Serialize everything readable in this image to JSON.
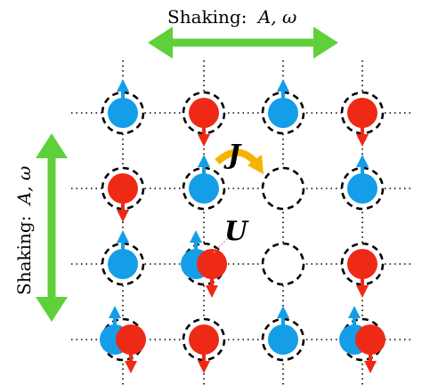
{
  "top_label": {
    "prefix": "Shaking:",
    "symbols": "A, ω"
  },
  "left_label": {
    "prefix": "Shaking:",
    "symbols": "A, ω"
  },
  "tunneling_label": "J",
  "interaction_label": "U",
  "colors": {
    "spin_up": "#149ee8",
    "spin_down": "#ee2a17",
    "shake_arrow": "#5fd03a",
    "tunnel_arrow": "#f5b400",
    "lattice": "#000000"
  },
  "lattice": {
    "rows": 4,
    "cols": 4,
    "sites": [
      [
        [
          "up"
        ],
        [
          "down"
        ],
        [
          "up"
        ],
        [
          "down"
        ]
      ],
      [
        [
          "down"
        ],
        [
          "up"
        ],
        [],
        [
          "up"
        ]
      ],
      [
        [
          "up"
        ],
        [
          "up",
          "down"
        ],
        [],
        [
          "down"
        ]
      ],
      [
        [
          "up",
          "down"
        ],
        [
          "down"
        ],
        [
          "up"
        ],
        [
          "up",
          "down"
        ]
      ]
    ]
  }
}
